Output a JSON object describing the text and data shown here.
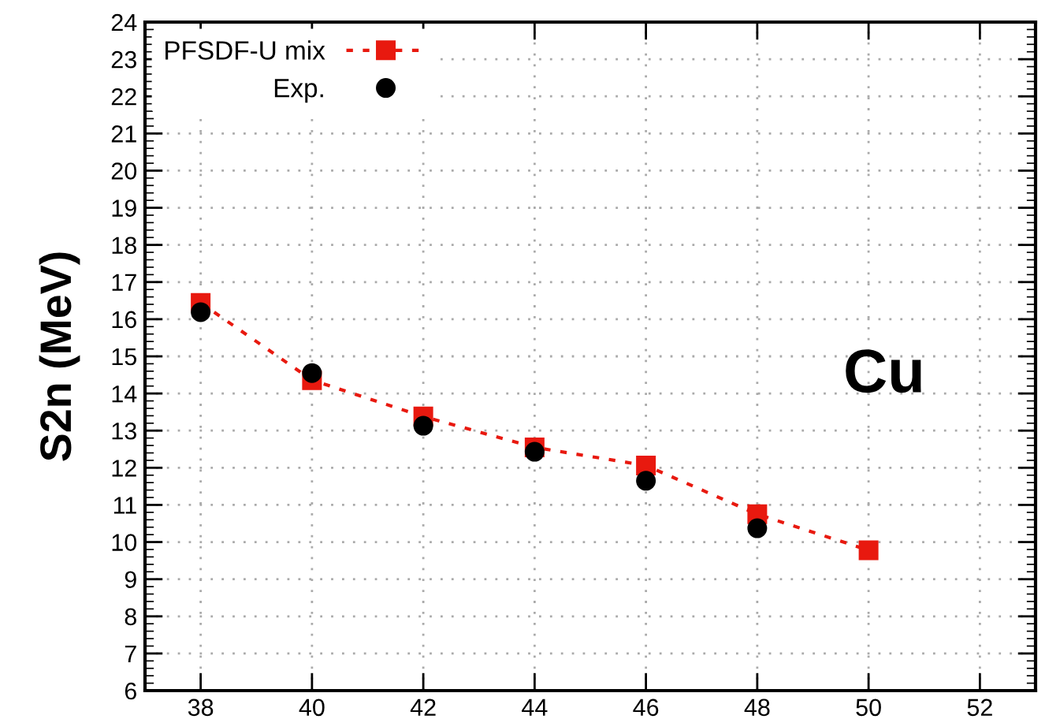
{
  "chart_data": {
    "type": "line",
    "ylabel": "S2n (MeV)",
    "annotations": [
      "Cu"
    ],
    "x": [
      38,
      40,
      42,
      44,
      46,
      48,
      50
    ],
    "series": [
      {
        "name": "PFSDF-U mix",
        "color": "#e8190f",
        "marker": "square",
        "line_style": "dashed",
        "values": [
          16.44,
          14.36,
          13.38,
          12.55,
          12.06,
          10.75,
          9.78
        ]
      },
      {
        "name": "Exp.",
        "type": "scatter",
        "color": "#000000",
        "marker": "circle",
        "x": [
          38,
          40,
          42,
          44,
          46,
          48
        ],
        "values": [
          16.19,
          14.55,
          13.13,
          12.43,
          11.65,
          10.37
        ]
      }
    ],
    "xlim": [
      37,
      53
    ],
    "xticks": [
      38,
      40,
      42,
      44,
      46,
      48,
      50,
      52
    ],
    "ylim": [
      6,
      24
    ],
    "yticks": [
      6,
      7,
      8,
      9,
      10,
      11,
      12,
      13,
      14,
      15,
      16,
      17,
      18,
      19,
      20,
      21,
      22,
      23,
      24
    ],
    "grid": true,
    "legend": "top left"
  }
}
